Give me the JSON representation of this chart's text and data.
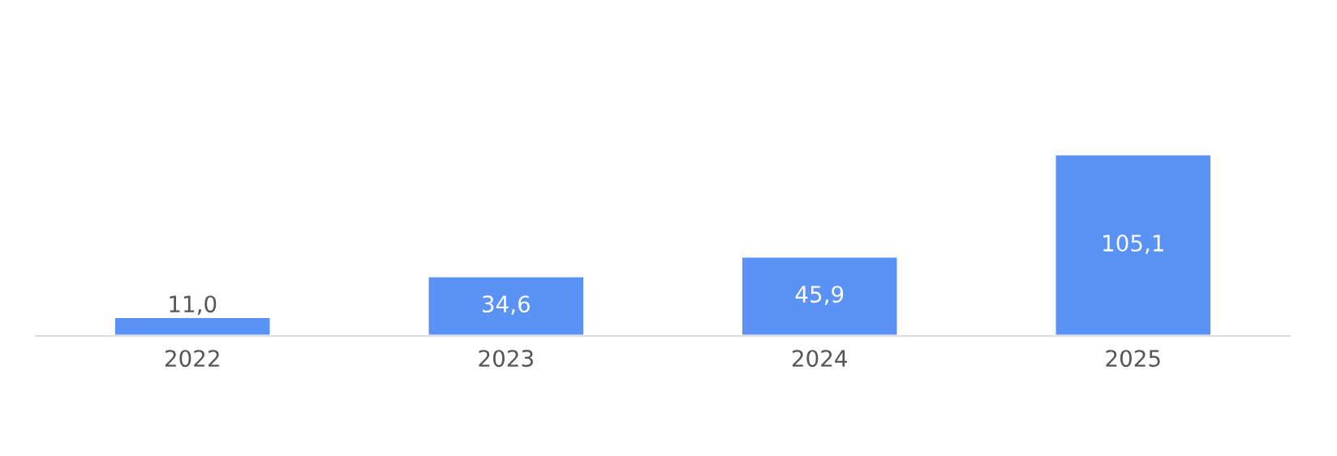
{
  "chart_data": {
    "type": "bar",
    "categories": [
      "2022",
      "2023",
      "2024",
      "2025"
    ],
    "series": [
      {
        "color": "#5a92f5",
        "values": [
          11.0,
          34.6,
          45.9,
          105.1
        ],
        "value_labels": [
          "11,0",
          "34,6",
          "45,9",
          "105,1"
        ]
      }
    ],
    "grid": false,
    "legend": false,
    "tick_labels": "x"
  }
}
